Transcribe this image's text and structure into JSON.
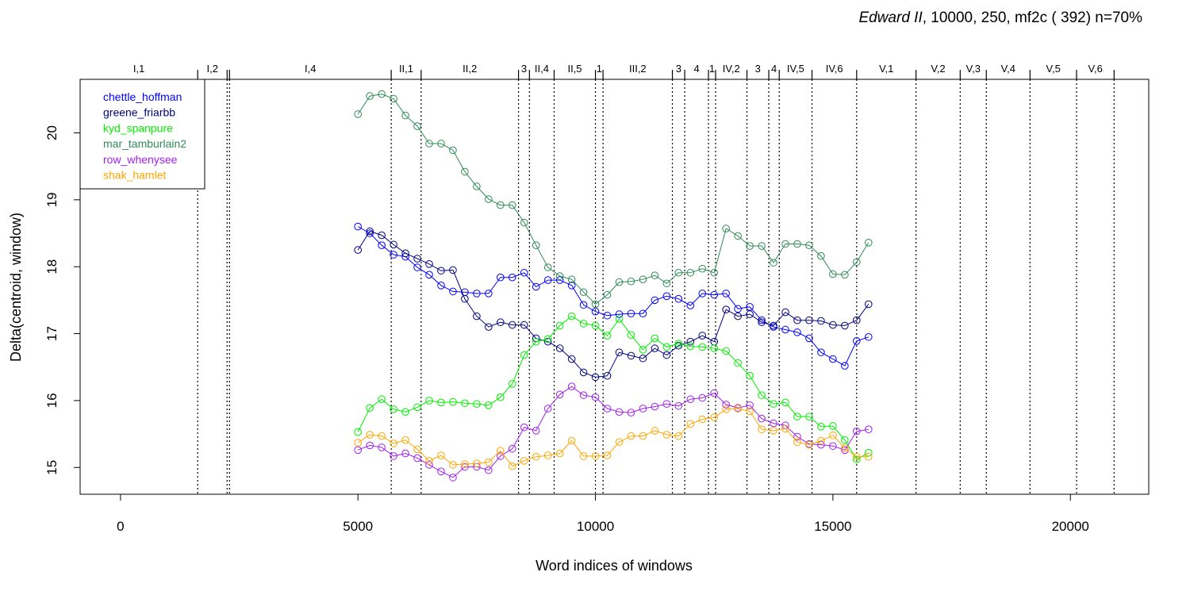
{
  "title": {
    "italic": "Edward II",
    "rest": ", 10000, 250, mf2c ( 392)   n=70%"
  },
  "chart_data": {
    "type": "line",
    "xlabel": "Word indices of windows",
    "ylabel": "Delta(centroid, window)",
    "xlim": [
      -850,
      21650
    ],
    "ylim": [
      14.6,
      20.8
    ],
    "xticks": [
      0,
      5000,
      10000,
      15000,
      20000
    ],
    "yticks": [
      15,
      16,
      17,
      18,
      19,
      20
    ],
    "grid": false,
    "legend_position": "top-left",
    "scene_markers": [
      {
        "label": "I,1",
        "x": 1625
      },
      {
        "label": "I,2",
        "x": 2245
      },
      {
        "label": "",
        "x": 2295
      },
      {
        "label": "I,4",
        "x": 5700
      },
      {
        "label": "II,1",
        "x": 6330
      },
      {
        "label": "II,2",
        "x": 8380
      },
      {
        "label": "3",
        "x": 8610
      },
      {
        "label": "II,4",
        "x": 9130
      },
      {
        "label": "II,5",
        "x": 10000
      },
      {
        "label": "1",
        "x": 10160
      },
      {
        "label": "III,2",
        "x": 11620
      },
      {
        "label": "3",
        "x": 11880
      },
      {
        "label": "4",
        "x": 12380
      },
      {
        "label": "1",
        "x": 12530
      },
      {
        "label": "IV,2",
        "x": 13190
      },
      {
        "label": "3",
        "x": 13650
      },
      {
        "label": "4",
        "x": 13870
      },
      {
        "label": "IV,5",
        "x": 14560
      },
      {
        "label": "IV,6",
        "x": 15500
      },
      {
        "label": "V,1",
        "x": 16750
      },
      {
        "label": "V,2",
        "x": 17680
      },
      {
        "label": "V,3",
        "x": 18230
      },
      {
        "label": "V,4",
        "x": 19150
      },
      {
        "label": "V,5",
        "x": 20130
      },
      {
        "label": "V,6",
        "x": 20920
      }
    ],
    "x": [
      5000,
      5250,
      5500,
      5750,
      6000,
      6250,
      6500,
      6750,
      7000,
      7250,
      7500,
      7750,
      8000,
      8250,
      8500,
      8750,
      9000,
      9250,
      9500,
      9750,
      10000,
      10250,
      10500,
      10750,
      11000,
      11250,
      11500,
      11750,
      12000,
      12250,
      12500,
      12750,
      13000,
      13250,
      13500,
      13750,
      14000,
      14250,
      14500,
      14750,
      15000,
      15250,
      15500,
      15750
    ],
    "series": [
      {
        "name": "chettle_hoffman",
        "color": "#0000ff",
        "values": [
          18.6,
          18.5,
          18.32,
          18.18,
          18.15,
          17.99,
          17.88,
          17.72,
          17.63,
          17.62,
          17.6,
          17.6,
          17.84,
          17.84,
          17.91,
          17.7,
          17.8,
          17.8,
          17.72,
          17.43,
          17.33,
          17.27,
          17.29,
          17.3,
          17.3,
          17.5,
          17.56,
          17.52,
          17.42,
          17.6,
          17.58,
          17.6,
          17.37,
          17.4,
          17.2,
          17.1,
          17.06,
          17.02,
          16.93,
          16.72,
          16.62,
          16.52,
          16.89,
          16.95
        ]
      },
      {
        "name": "greene_friarbb",
        "color": "#000080",
        "values": [
          18.25,
          18.53,
          18.47,
          18.33,
          18.2,
          18.12,
          18.04,
          17.94,
          17.95,
          17.52,
          17.26,
          17.1,
          17.17,
          17.13,
          17.13,
          16.93,
          16.88,
          16.78,
          16.62,
          16.42,
          16.35,
          16.37,
          16.72,
          16.67,
          16.63,
          16.78,
          16.68,
          16.82,
          16.88,
          16.97,
          16.88,
          17.36,
          17.26,
          17.29,
          17.17,
          17.12,
          17.32,
          17.2,
          17.2,
          17.19,
          17.13,
          17.12,
          17.2,
          17.44
        ]
      },
      {
        "name": "kyd_spanpure",
        "color": "#00ee00",
        "values": [
          15.53,
          15.89,
          16.02,
          15.87,
          15.83,
          15.9,
          16.0,
          15.97,
          15.98,
          15.96,
          15.95,
          15.93,
          16.05,
          16.25,
          16.68,
          16.88,
          16.92,
          17.12,
          17.26,
          17.15,
          17.12,
          16.97,
          17.22,
          16.98,
          16.76,
          16.93,
          16.8,
          16.85,
          16.81,
          16.8,
          16.78,
          16.74,
          16.56,
          16.37,
          16.08,
          15.95,
          15.97,
          15.76,
          15.76,
          15.61,
          15.62,
          15.41,
          15.12,
          15.22
        ]
      },
      {
        "name": "mar_tamburlain2",
        "color": "#2e8b57",
        "values": [
          20.28,
          20.55,
          20.58,
          20.51,
          20.26,
          20.1,
          19.84,
          19.84,
          19.74,
          19.42,
          19.2,
          19.01,
          18.92,
          18.92,
          18.66,
          18.32,
          17.99,
          17.86,
          17.81,
          17.62,
          17.44,
          17.58,
          17.77,
          17.78,
          17.81,
          17.87,
          17.75,
          17.91,
          17.91,
          17.97,
          17.91,
          18.57,
          18.46,
          18.31,
          18.31,
          18.06,
          18.34,
          18.34,
          18.32,
          18.16,
          17.89,
          17.88,
          18.07,
          18.36
        ]
      },
      {
        "name": "row_whenysee",
        "color": "#a020f0",
        "values": [
          15.26,
          15.33,
          15.3,
          15.17,
          15.21,
          15.14,
          15.04,
          14.94,
          14.85,
          15.01,
          15.01,
          14.96,
          15.17,
          15.28,
          15.6,
          15.55,
          15.88,
          16.09,
          16.21,
          16.08,
          16.05,
          15.88,
          15.83,
          15.82,
          15.88,
          15.91,
          15.95,
          15.92,
          16.02,
          16.04,
          16.11,
          15.94,
          15.89,
          15.93,
          15.73,
          15.66,
          15.63,
          15.46,
          15.35,
          15.34,
          15.32,
          15.26,
          15.54,
          15.57
        ]
      },
      {
        "name": "shak_hamlet",
        "color": "#ffa500",
        "values": [
          15.37,
          15.49,
          15.47,
          15.36,
          15.41,
          15.27,
          15.1,
          15.18,
          15.04,
          15.05,
          15.06,
          15.08,
          15.25,
          15.02,
          15.1,
          15.16,
          15.18,
          15.21,
          15.4,
          15.17,
          15.17,
          15.18,
          15.38,
          15.47,
          15.47,
          15.55,
          15.49,
          15.47,
          15.65,
          15.72,
          15.75,
          15.87,
          15.88,
          15.84,
          15.57,
          15.55,
          15.58,
          15.38,
          15.34,
          15.4,
          15.48,
          15.29,
          15.16,
          15.16
        ]
      }
    ]
  }
}
